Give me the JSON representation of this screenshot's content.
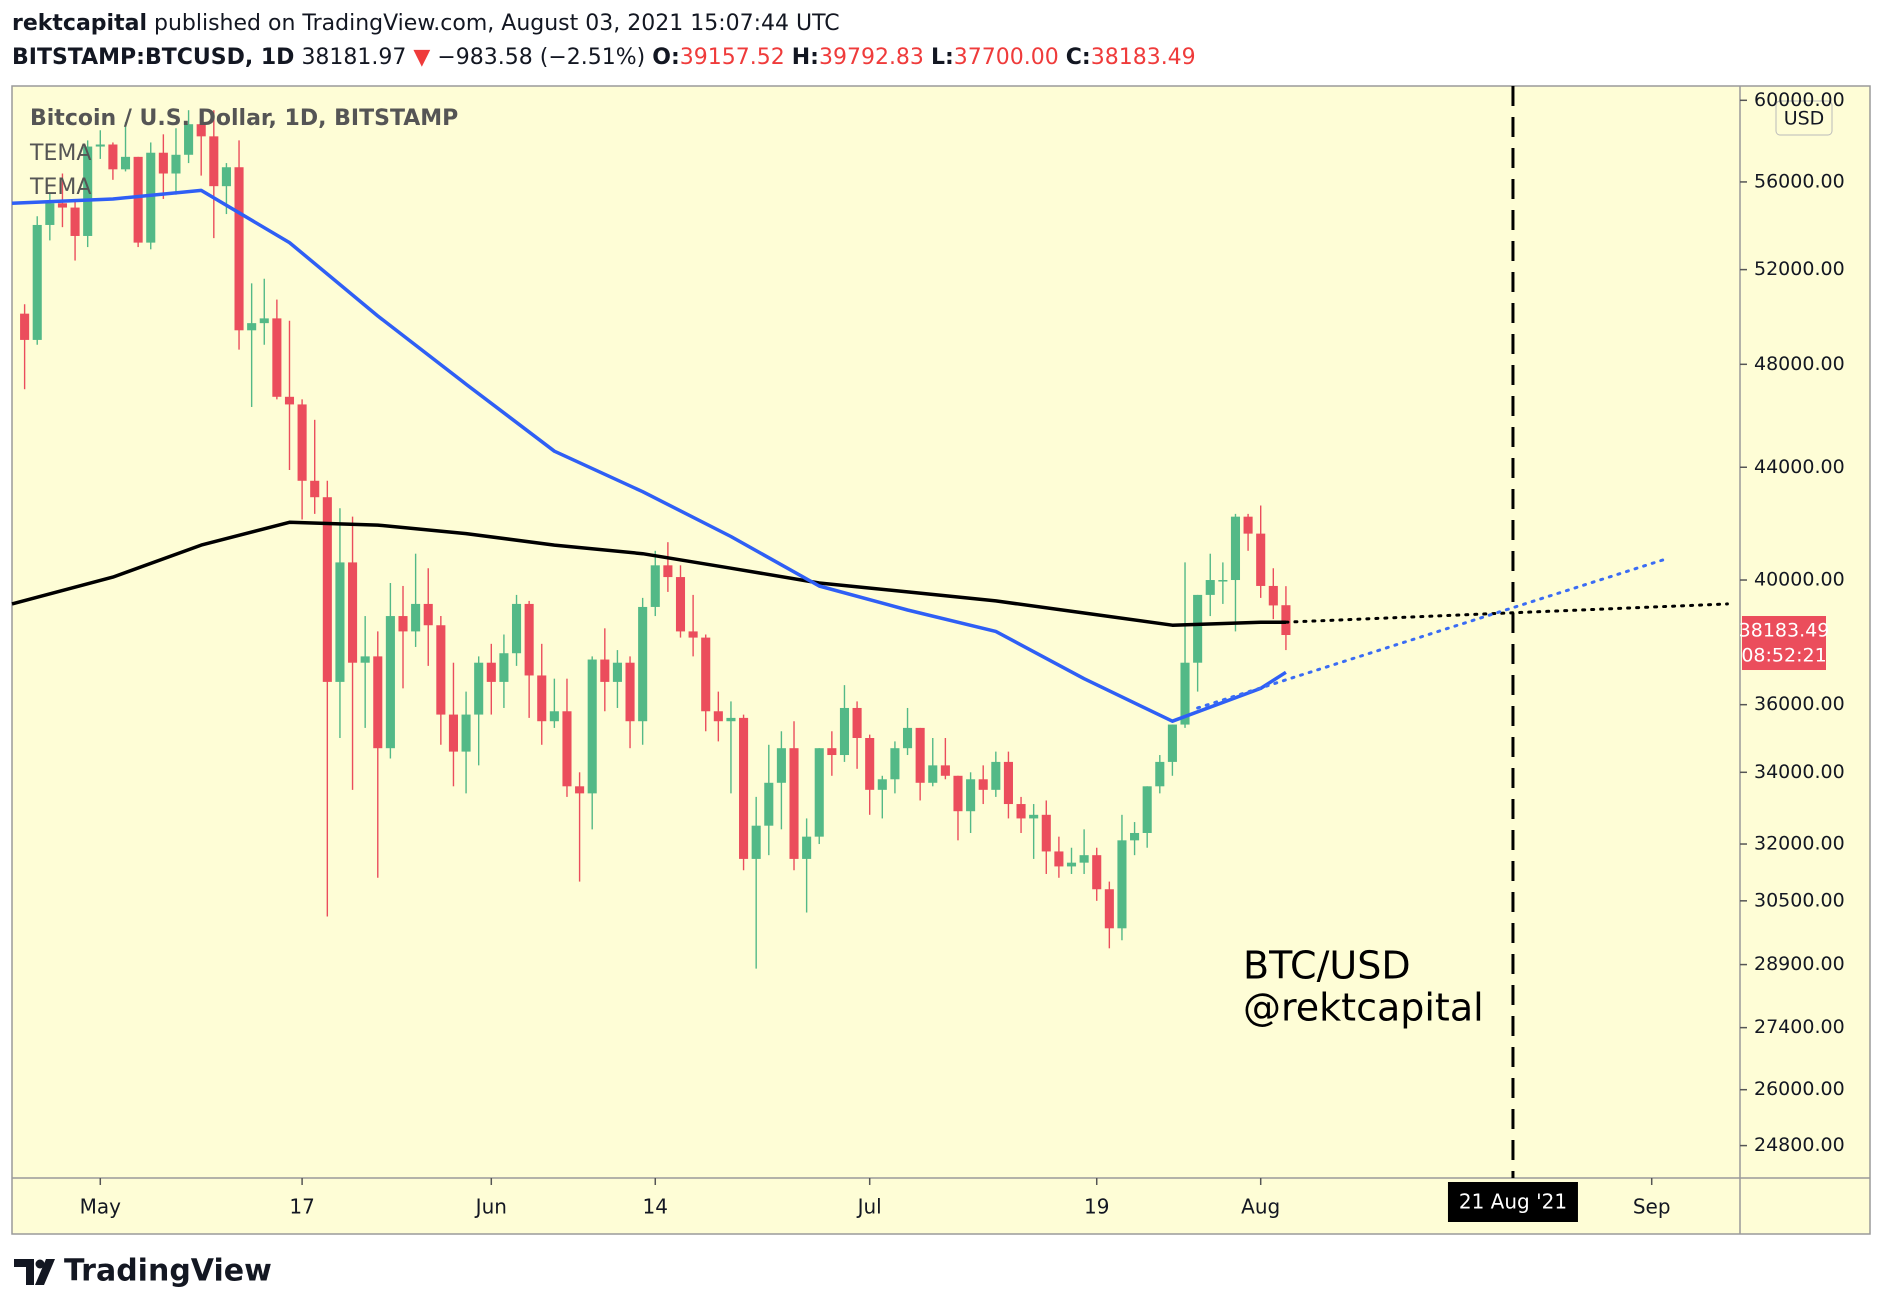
{
  "header": {
    "author": "rektcapital",
    "published": "published on TradingView.com, August 03, 2021 15:07:44 UTC",
    "symbol": "BITSTAMP:BTCUSD, 1D",
    "last": "38181.97",
    "arrow": "▼",
    "change": "−983.58 (−2.51%)",
    "fields": [
      {
        "key": "O:",
        "value": "39157.52"
      },
      {
        "key": "H:",
        "value": "39792.83"
      },
      {
        "key": "L:",
        "value": "37700.00"
      },
      {
        "key": "C:",
        "value": "38183.49"
      }
    ]
  },
  "footer": {
    "brand": "TradingView"
  },
  "chart_data": {
    "type": "candlestick",
    "legend_title": "Bitcoin / U.S. Dollar, 1D, BITSTAMP",
    "currency": "USD",
    "annotation": [
      "BTC/USD",
      "@rektcapital"
    ],
    "up_color": "#53b987",
    "down_color": "#eb4d5c",
    "background": "#fefdd6",
    "grid": false,
    "log": true,
    "x": [
      "2021-04-25",
      "2021-04-26",
      "2021-04-27",
      "2021-04-28",
      "2021-04-29",
      "2021-04-30",
      "2021-05-01",
      "2021-05-02",
      "2021-05-03",
      "2021-05-04",
      "2021-05-05",
      "2021-05-06",
      "2021-05-07",
      "2021-05-08",
      "2021-05-09",
      "2021-05-10",
      "2021-05-11",
      "2021-05-12",
      "2021-05-13",
      "2021-05-14",
      "2021-05-15",
      "2021-05-16",
      "2021-05-17",
      "2021-05-18",
      "2021-05-19",
      "2021-05-20",
      "2021-05-21",
      "2021-05-22",
      "2021-05-23",
      "2021-05-24",
      "2021-05-25",
      "2021-05-26",
      "2021-05-27",
      "2021-05-28",
      "2021-05-29",
      "2021-05-30",
      "2021-05-31",
      "2021-06-01",
      "2021-06-02",
      "2021-06-03",
      "2021-06-04",
      "2021-06-05",
      "2021-06-06",
      "2021-06-07",
      "2021-06-08",
      "2021-06-09",
      "2021-06-10",
      "2021-06-11",
      "2021-06-12",
      "2021-06-13",
      "2021-06-14",
      "2021-06-15",
      "2021-06-16",
      "2021-06-17",
      "2021-06-18",
      "2021-06-19",
      "2021-06-20",
      "2021-06-21",
      "2021-06-22",
      "2021-06-23",
      "2021-06-24",
      "2021-06-25",
      "2021-06-26",
      "2021-06-27",
      "2021-06-28",
      "2021-06-29",
      "2021-06-30",
      "2021-07-01",
      "2021-07-02",
      "2021-07-03",
      "2021-07-04",
      "2021-07-05",
      "2021-07-06",
      "2021-07-07",
      "2021-07-08",
      "2021-07-09",
      "2021-07-10",
      "2021-07-11",
      "2021-07-12",
      "2021-07-13",
      "2021-07-14",
      "2021-07-15",
      "2021-07-16",
      "2021-07-17",
      "2021-07-18",
      "2021-07-19",
      "2021-07-20",
      "2021-07-21",
      "2021-07-22",
      "2021-07-23",
      "2021-07-24",
      "2021-07-25",
      "2021-07-26",
      "2021-07-27",
      "2021-07-28",
      "2021-07-29",
      "2021-07-30",
      "2021-07-31",
      "2021-08-01",
      "2021-08-02",
      "2021-08-03"
    ],
    "open": [
      50100,
      49000,
      54000,
      55000,
      54800,
      53500,
      57700,
      57800,
      56600,
      57200,
      53200,
      57400,
      56400,
      57300,
      58800,
      58200,
      55800,
      56700,
      49400,
      49700,
      49900,
      46700,
      46400,
      43500,
      42900,
      36700,
      40600,
      37300,
      37500,
      34700,
      38800,
      38300,
      39200,
      38500,
      35700,
      34600,
      35700,
      37300,
      36700,
      37600,
      39200,
      36900,
      35500,
      35800,
      33600,
      33400,
      37400,
      36700,
      37300,
      35500,
      39100,
      40500,
      40100,
      38300,
      38100,
      35800,
      35500,
      35600,
      31600,
      32500,
      33700,
      34700,
      31600,
      32200,
      34700,
      34500,
      35900,
      35000,
      33500,
      33800,
      34700,
      35300,
      33700,
      34200,
      33900,
      32900,
      33800,
      33500,
      34300,
      33100,
      32700,
      32800,
      31800,
      31400,
      31500,
      31700,
      30800,
      29800,
      32100,
      32300,
      33600,
      34300,
      35400,
      37300,
      39500,
      40000,
      40000,
      42200,
      41600,
      39800,
      39157.52
    ],
    "high": [
      50500,
      54400,
      55500,
      56400,
      55200,
      58000,
      58500,
      57900,
      58900,
      57200,
      57900,
      58300,
      58600,
      59500,
      59200,
      59500,
      56900,
      58000,
      51400,
      51600,
      50700,
      49800,
      46600,
      45800,
      43500,
      42500,
      42200,
      38800,
      38300,
      39900,
      39800,
      40900,
      40400,
      38800,
      37300,
      36400,
      37500,
      37900,
      38200,
      39500,
      39300,
      37900,
      36800,
      36800,
      34000,
      37500,
      38400,
      37700,
      37500,
      39400,
      41000,
      41300,
      40500,
      39500,
      38200,
      36400,
      36100,
      35700,
      33300,
      34800,
      35200,
      35500,
      32700,
      34700,
      35200,
      36600,
      36100,
      35100,
      33900,
      34900,
      35900,
      35300,
      35000,
      35000,
      33900,
      34000,
      34200,
      34600,
      34600,
      33300,
      33100,
      33200,
      32200,
      31900,
      32400,
      31900,
      31000,
      32800,
      32600,
      33600,
      34500,
      35400,
      40600,
      39500,
      40900,
      40600,
      42300,
      42300,
      42600,
      40400,
      39792.83
    ],
    "low": [
      47000,
      48800,
      53300,
      53900,
      52400,
      53000,
      57100,
      56100,
      56500,
      53000,
      52900,
      55200,
      55400,
      56900,
      56300,
      53400,
      54500,
      48600,
      46300,
      48800,
      46600,
      43900,
      42100,
      42300,
      30100,
      35000,
      33500,
      35300,
      31100,
      34400,
      36500,
      37800,
      37200,
      34800,
      33600,
      33400,
      34200,
      35700,
      35900,
      37200,
      35600,
      34800,
      35300,
      33300,
      31000,
      32400,
      35800,
      35900,
      34700,
      34800,
      38800,
      39600,
      38100,
      37500,
      35200,
      34900,
      33400,
      31300,
      28800,
      31700,
      32400,
      31300,
      30200,
      32000,
      33900,
      34300,
      34100,
      32800,
      32700,
      33400,
      34500,
      33200,
      33600,
      33800,
      32100,
      32300,
      33100,
      33300,
      32700,
      32300,
      31600,
      31200,
      31100,
      31200,
      31200,
      30500,
      29300,
      29500,
      31700,
      31900,
      33400,
      33900,
      35300,
      36400,
      38800,
      39200,
      38300,
      41000,
      39400,
      38700,
      37700
    ],
    "close": [
      49000,
      54000,
      55000,
      54800,
      53500,
      57700,
      57800,
      56600,
      57200,
      53200,
      57400,
      56400,
      57300,
      58800,
      58200,
      55800,
      56700,
      49400,
      49700,
      49900,
      46700,
      46400,
      43500,
      42900,
      36700,
      40600,
      37300,
      37500,
      34700,
      38800,
      38300,
      39200,
      38500,
      35700,
      34600,
      35700,
      37300,
      36700,
      37600,
      39200,
      36900,
      35500,
      35800,
      33600,
      33400,
      37400,
      36700,
      37300,
      35500,
      39100,
      40500,
      40100,
      38300,
      38100,
      35800,
      35500,
      35600,
      31600,
      32500,
      33700,
      34700,
      31600,
      32200,
      34700,
      34500,
      35900,
      35000,
      33500,
      33800,
      34700,
      35300,
      33700,
      34200,
      33900,
      32900,
      33800,
      33500,
      34300,
      33100,
      32700,
      32800,
      31800,
      31400,
      31500,
      31700,
      30800,
      29800,
      32100,
      32300,
      33600,
      34300,
      35400,
      37300,
      39500,
      40000,
      40000,
      42200,
      41600,
      39800,
      39150,
      38183.49
    ],
    "series": [
      {
        "name": "TEMA",
        "type": "line",
        "color": "#000000",
        "x": [
          "2021-04-24",
          "2021-05-02",
          "2021-05-09",
          "2021-05-16",
          "2021-05-23",
          "2021-05-30",
          "2021-06-06",
          "2021-06-13",
          "2021-06-20",
          "2021-06-27",
          "2021-07-04",
          "2021-07-11",
          "2021-07-18",
          "2021-07-25",
          "2021-08-01",
          "2021-08-03"
        ],
        "values": [
          39200,
          40100,
          41200,
          42000,
          41900,
          41600,
          41200,
          40900,
          40400,
          39900,
          39600,
          39300,
          38900,
          38500,
          38600,
          38600
        ]
      },
      {
        "name": "TEMA",
        "type": "line",
        "color": "#2f5ff5",
        "x": [
          "2021-04-24",
          "2021-05-02",
          "2021-05-09",
          "2021-05-16",
          "2021-05-23",
          "2021-05-30",
          "2021-06-06",
          "2021-06-13",
          "2021-06-20",
          "2021-06-27",
          "2021-07-04",
          "2021-07-11",
          "2021-07-18",
          "2021-07-25",
          "2021-08-01",
          "2021-08-03"
        ],
        "values": [
          55000,
          55200,
          55600,
          53200,
          50000,
          47200,
          44600,
          43100,
          41500,
          39800,
          39000,
          38300,
          36800,
          35500,
          36500,
          37000
        ]
      }
    ],
    "trendlines": [
      {
        "color": "#000000",
        "x": [
          "2021-08-03",
          "2021-09-07"
        ],
        "values": [
          38600,
          39200
        ]
      },
      {
        "color": "#3a6cf4",
        "x": [
          "2021-07-27",
          "2021-09-02"
        ],
        "values": [
          35900,
          40700
        ]
      }
    ],
    "marker": {
      "x": "2021-08-21",
      "label": "21 Aug '21"
    },
    "last_price": {
      "value": 38183.49,
      "label": "38183.49"
    },
    "countdown": "08:52:21",
    "xlim": [
      "2021-04-24",
      "2021-09-08"
    ],
    "xticks": [
      {
        "value": "2021-05-01",
        "label": "May"
      },
      {
        "value": "2021-05-17",
        "label": "17"
      },
      {
        "value": "2021-06-01",
        "label": "Jun"
      },
      {
        "value": "2021-06-14",
        "label": "14"
      },
      {
        "value": "2021-07-01",
        "label": "Jul"
      },
      {
        "value": "2021-07-19",
        "label": "19"
      },
      {
        "value": "2021-08-01",
        "label": "Aug"
      },
      {
        "value": "2021-09-01",
        "label": "Sep"
      }
    ],
    "ylim": [
      24130,
      60730
    ],
    "yticks": [
      {
        "value": 60000,
        "label": "60000.00"
      },
      {
        "value": 56000,
        "label": "56000.00"
      },
      {
        "value": 52000,
        "label": "52000.00"
      },
      {
        "value": 48000,
        "label": "48000.00"
      },
      {
        "value": 44000,
        "label": "44000.00"
      },
      {
        "value": 40000,
        "label": "40000.00"
      },
      {
        "value": 36000,
        "label": "36000.00"
      },
      {
        "value": 34000,
        "label": "34000.00"
      },
      {
        "value": 32000,
        "label": "32000.00"
      },
      {
        "value": 30500,
        "label": "30500.00"
      },
      {
        "value": 28900,
        "label": "28900.00"
      },
      {
        "value": 27400,
        "label": "27400.00"
      },
      {
        "value": 26000,
        "label": "26000.00"
      },
      {
        "value": 24800,
        "label": "24800.00"
      }
    ]
  }
}
